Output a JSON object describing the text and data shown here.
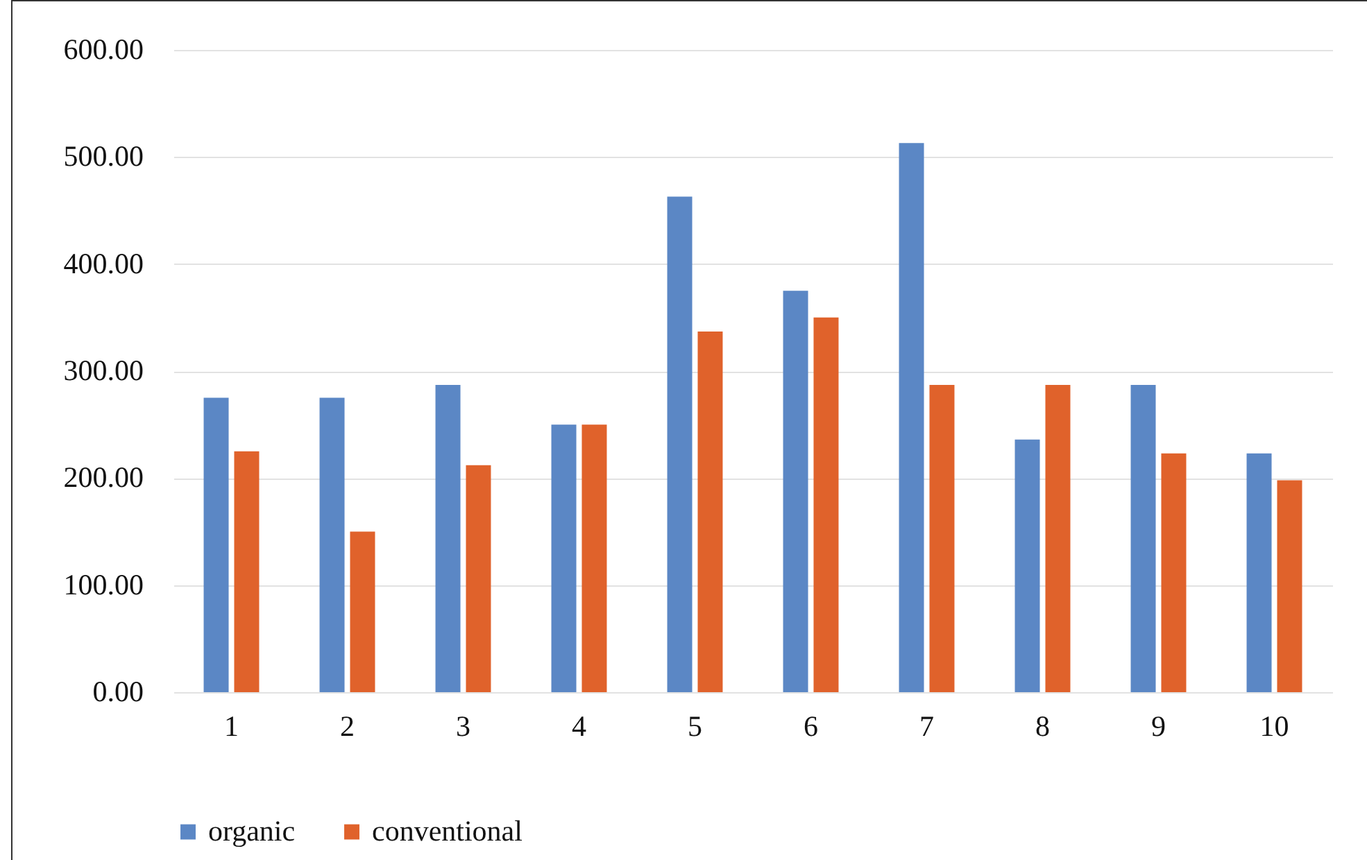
{
  "chart_data": {
    "type": "bar",
    "categories": [
      "1",
      "2",
      "3",
      "4",
      "5",
      "6",
      "7",
      "8",
      "9",
      "10"
    ],
    "series": [
      {
        "name": "organic",
        "color": "#5b87c5",
        "values": [
          275,
          275,
          287,
          250,
          463,
          375,
          513,
          236,
          287,
          223
        ]
      },
      {
        "name": "conventional",
        "color": "#e0622b",
        "values": [
          225,
          150,
          212,
          250,
          337,
          350,
          287,
          287,
          223,
          198
        ]
      }
    ],
    "ylim": [
      0,
      600
    ],
    "yticks": [
      {
        "value": 0,
        "label": "0.00"
      },
      {
        "value": 100,
        "label": "100.00"
      },
      {
        "value": 200,
        "label": "200.00"
      },
      {
        "value": 300,
        "label": "300.00"
      },
      {
        "value": 400,
        "label": "400.00"
      },
      {
        "value": 500,
        "label": "500.00"
      },
      {
        "value": 600,
        "label": "600.00"
      }
    ],
    "grid": "y",
    "legend": "bottom"
  }
}
